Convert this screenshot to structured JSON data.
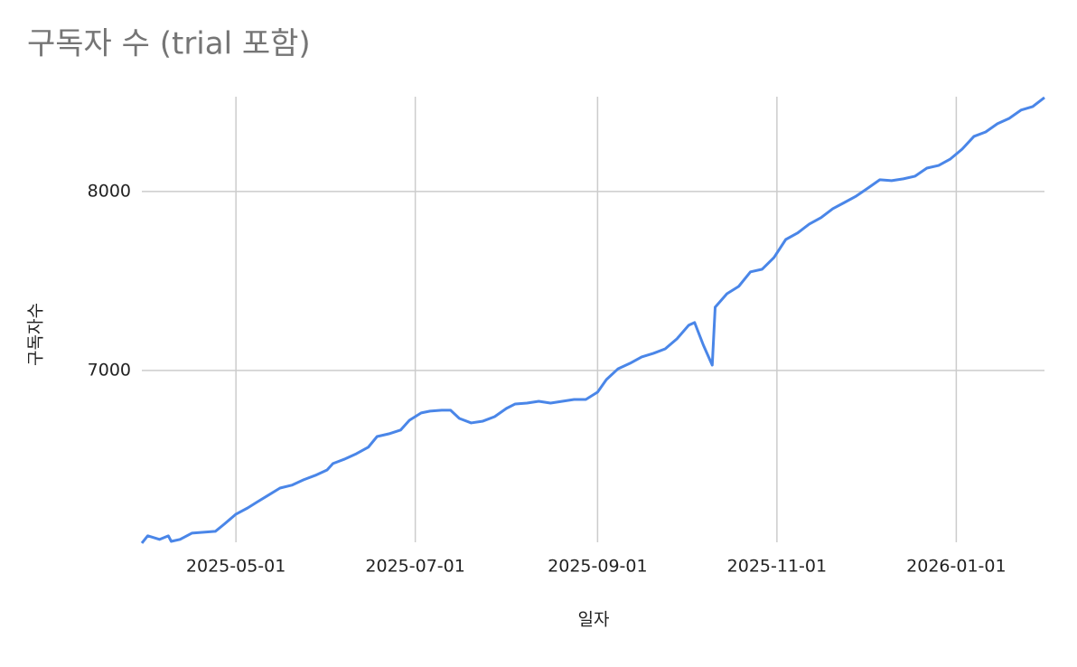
{
  "chart_data": {
    "type": "line",
    "title": "구독자 수 (trial 포함)",
    "x_label": "일자",
    "y_label": "구독자수",
    "x": [
      "2025-03-30",
      "2025-04-01",
      "2025-04-05",
      "2025-04-08",
      "2025-04-09",
      "2025-04-12",
      "2025-04-16",
      "2025-04-20",
      "2025-04-24",
      "2025-04-27",
      "2025-05-01",
      "2025-05-05",
      "2025-05-08",
      "2025-05-12",
      "2025-05-16",
      "2025-05-20",
      "2025-05-24",
      "2025-05-28",
      "2025-06-01",
      "2025-06-03",
      "2025-06-07",
      "2025-06-11",
      "2025-06-15",
      "2025-06-18",
      "2025-06-22",
      "2025-06-26",
      "2025-06-29",
      "2025-07-03",
      "2025-07-06",
      "2025-07-10",
      "2025-07-13",
      "2025-07-16",
      "2025-07-20",
      "2025-07-24",
      "2025-07-28",
      "2025-08-01",
      "2025-08-04",
      "2025-08-08",
      "2025-08-12",
      "2025-08-16",
      "2025-08-20",
      "2025-08-24",
      "2025-08-28",
      "2025-09-01",
      "2025-09-04",
      "2025-09-08",
      "2025-09-12",
      "2025-09-16",
      "2025-09-20",
      "2025-09-24",
      "2025-09-28",
      "2025-10-02",
      "2025-10-04",
      "2025-10-07",
      "2025-10-10",
      "2025-10-11",
      "2025-10-15",
      "2025-10-19",
      "2025-10-23",
      "2025-10-27",
      "2025-10-31",
      "2025-11-04",
      "2025-11-08",
      "2025-11-12",
      "2025-11-16",
      "2025-11-20",
      "2025-11-24",
      "2025-11-28",
      "2025-12-02",
      "2025-12-06",
      "2025-12-10",
      "2025-12-14",
      "2025-12-18",
      "2025-12-22",
      "2025-12-26",
      "2025-12-30",
      "2026-01-03",
      "2026-01-07",
      "2026-01-11",
      "2026-01-15",
      "2026-01-19",
      "2026-01-23",
      "2026-01-27",
      "2026-01-31"
    ],
    "values": [
      6035,
      6076,
      6056,
      6076,
      6045,
      6056,
      6091,
      6096,
      6101,
      6141,
      6197,
      6232,
      6263,
      6303,
      6343,
      6359,
      6389,
      6414,
      6444,
      6480,
      6505,
      6535,
      6571,
      6631,
      6646,
      6667,
      6722,
      6763,
      6773,
      6778,
      6778,
      6732,
      6707,
      6717,
      6742,
      6788,
      6813,
      6818,
      6828,
      6818,
      6828,
      6838,
      6838,
      6879,
      6949,
      7010,
      7040,
      7076,
      7096,
      7121,
      7177,
      7253,
      7268,
      7141,
      7030,
      7354,
      7429,
      7470,
      7551,
      7566,
      7631,
      7732,
      7768,
      7818,
      7854,
      7904,
      7939,
      7975,
      8020,
      8066,
      8061,
      8071,
      8086,
      8131,
      8146,
      8182,
      8237,
      8308,
      8333,
      8379,
      8409,
      8455,
      8475,
      8525
    ],
    "color": "#4a86e8",
    "xlim": [
      "2025-03-30",
      "2026-01-31"
    ],
    "xticks": [
      "2025-05-01",
      "2025-07-01",
      "2025-09-01",
      "2025-11-01",
      "2026-01-01"
    ],
    "ylim": [
      6040,
      8530
    ],
    "yticks": [
      7000,
      8000
    ],
    "grid": true
  }
}
